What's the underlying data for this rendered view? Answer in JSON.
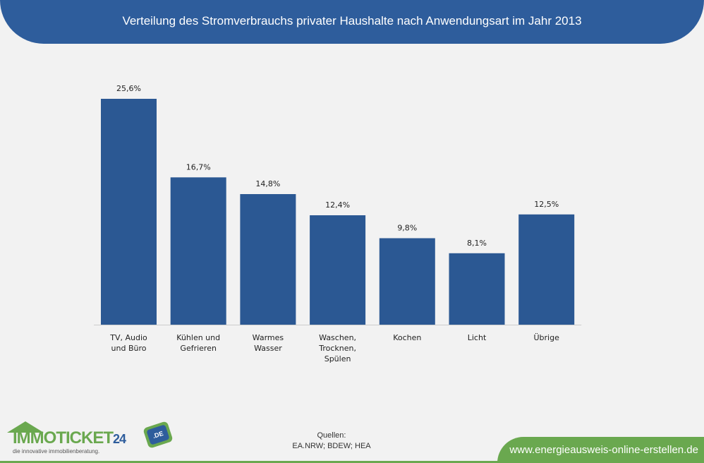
{
  "header": {
    "title": "Verteilung des Stromverbrauchs privater Haushalte nach Anwendungsart im Jahr 2013"
  },
  "chart_data": {
    "type": "bar",
    "title": "Verteilung des Stromverbrauchs privater Haushalte nach Anwendungsart im Jahr 2013",
    "categories": [
      [
        "TV, Audio",
        "und Büro"
      ],
      [
        "Kühlen und",
        "Gefrieren"
      ],
      [
        "Warmes",
        "Wasser"
      ],
      [
        "Waschen,",
        "Trocknen,",
        "Spülen"
      ],
      [
        "Kochen"
      ],
      [
        "Licht"
      ],
      [
        "Übrige"
      ]
    ],
    "values": [
      25.6,
      16.7,
      14.8,
      12.4,
      9.8,
      8.1,
      12.5
    ],
    "value_labels": [
      "25,6%",
      "16,7%",
      "14,8%",
      "12,4%",
      "9,8%",
      "8,1%",
      "12,5%"
    ],
    "unit": "%",
    "bar_color": "#2b5893",
    "ylim": [
      0,
      25.6
    ],
    "grid": false,
    "legend": "none"
  },
  "footer": {
    "logo_main": "IMMOTICKET",
    "logo_num": "24",
    "logo_badge": ".DE",
    "logo_tagline": "die innovative immobilienberatung.",
    "sources_title": "Quellen:",
    "sources_text": "EA.NRW; BDEW; HEA",
    "url": "www.energieausweis-online-erstellen.de"
  },
  "colors": {
    "header": "#2e5d9c",
    "bar": "#2b5893",
    "accent_green": "#6aa84f",
    "background": "#f2f2f2"
  }
}
